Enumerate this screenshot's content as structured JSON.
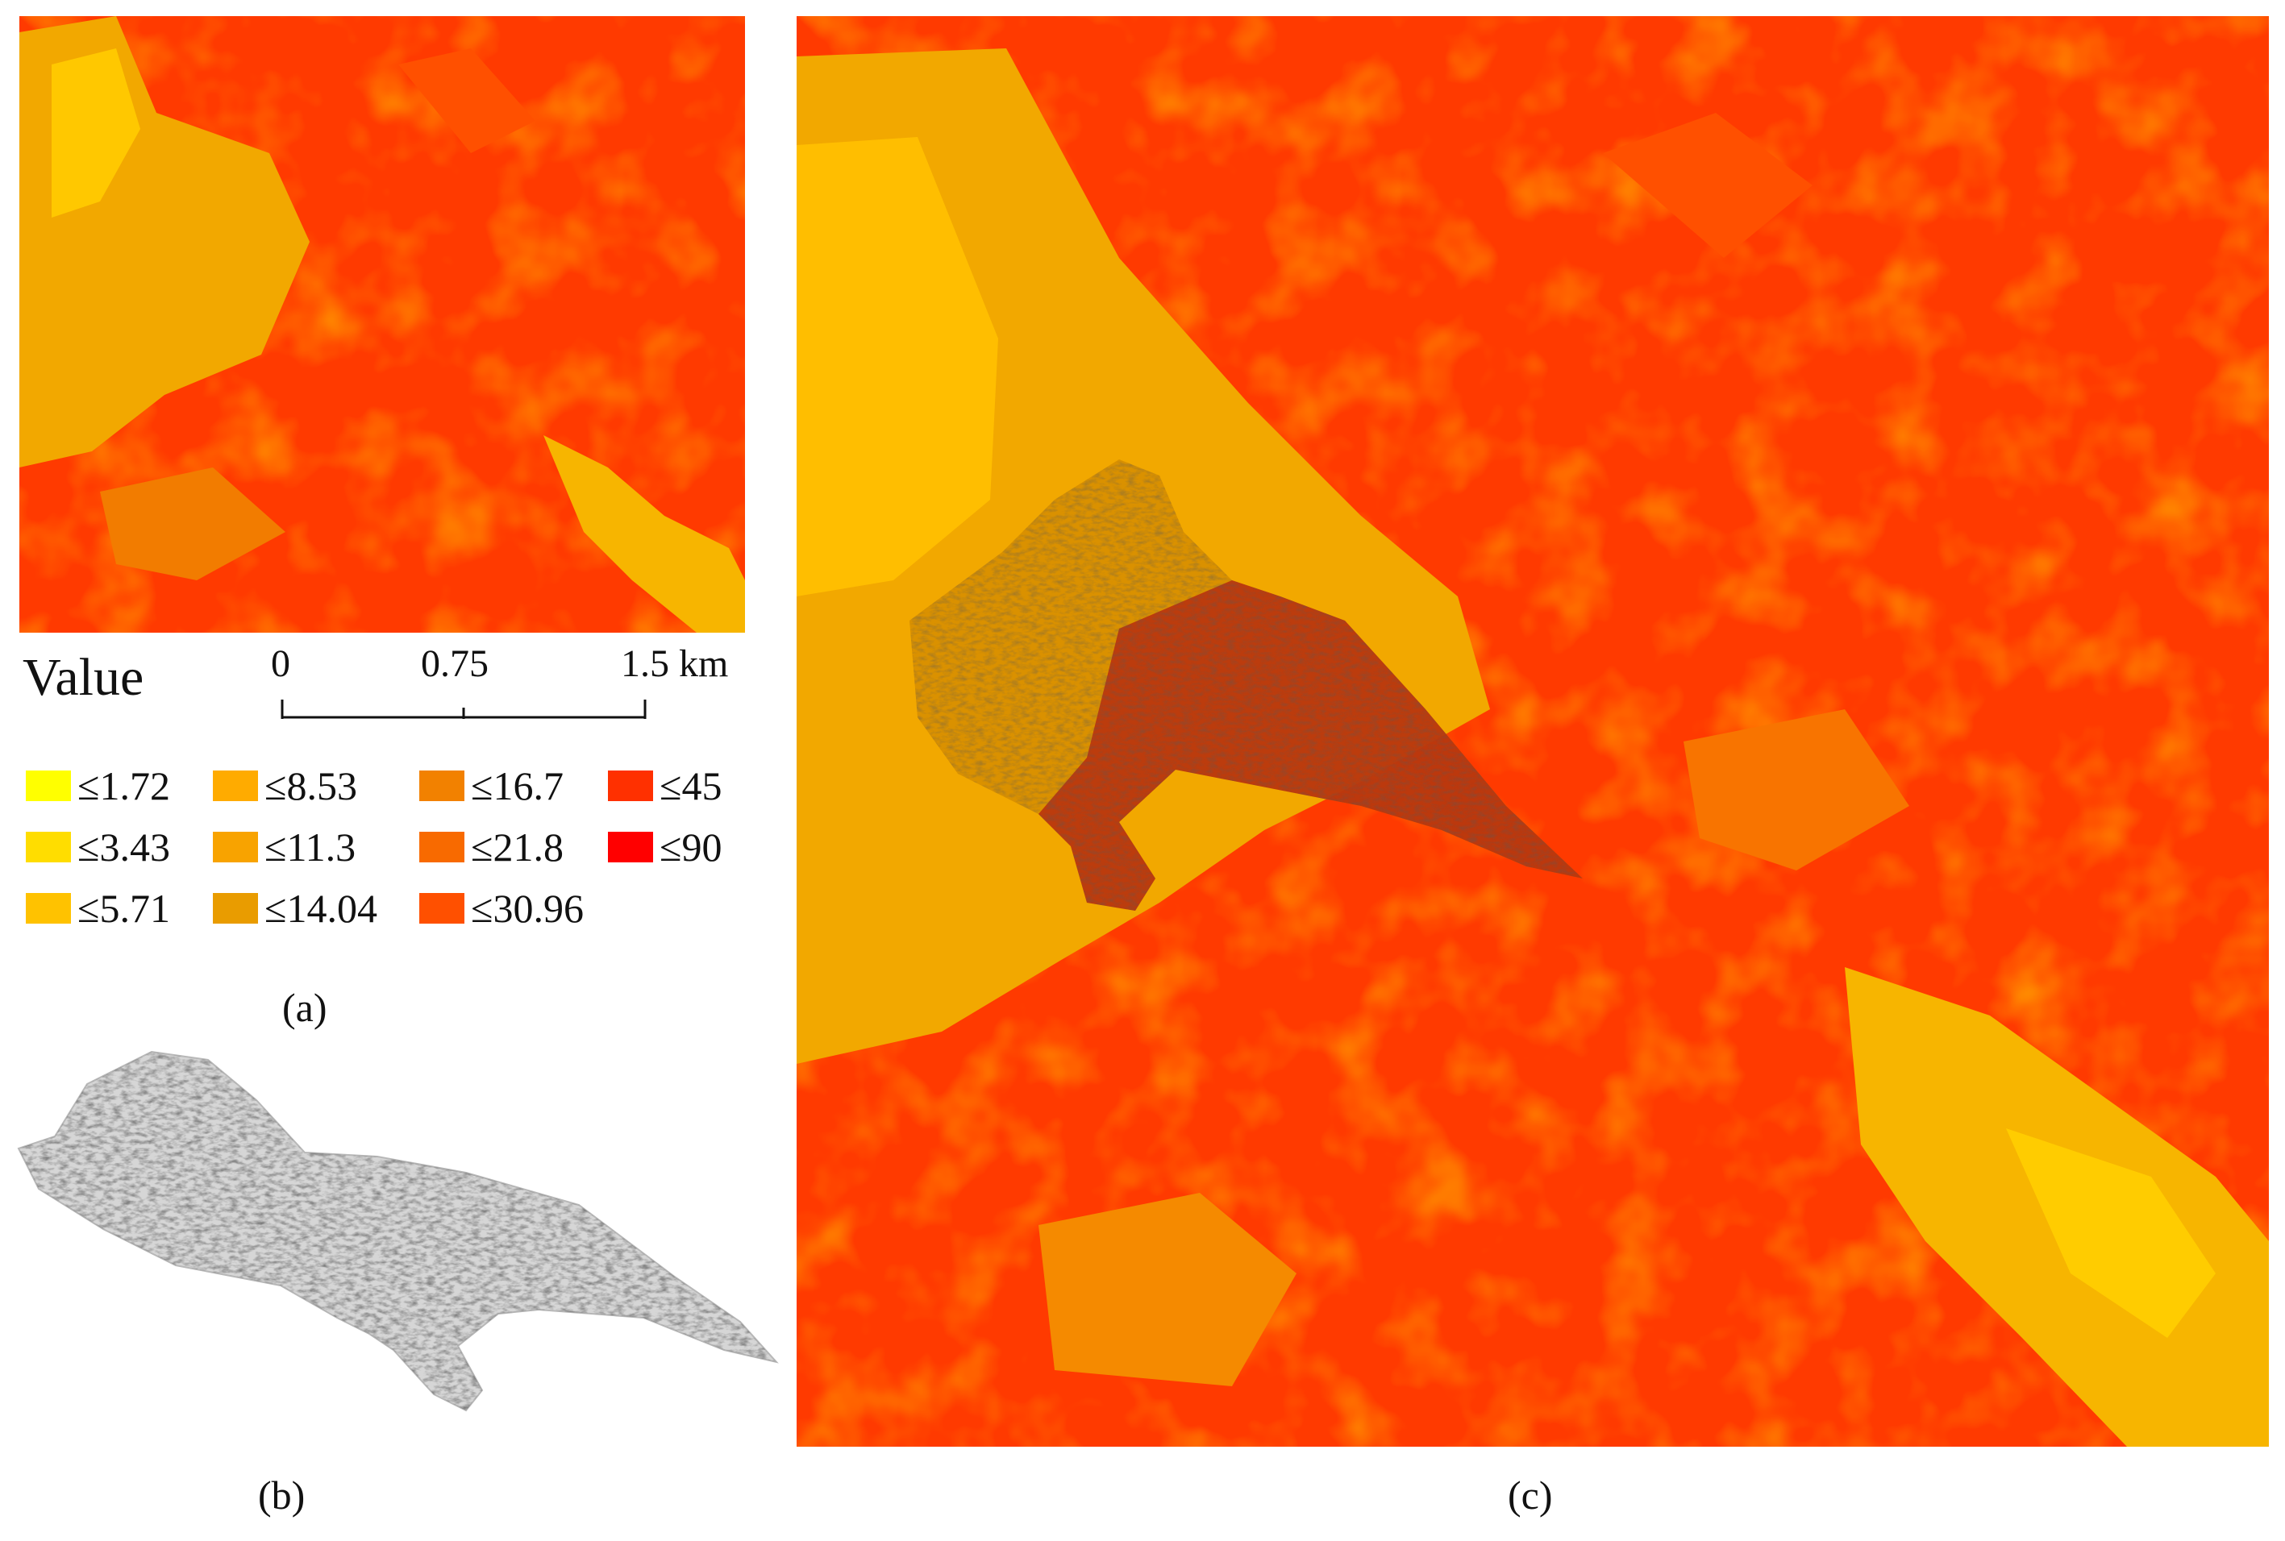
{
  "legend": {
    "title": "Value",
    "classes": [
      {
        "label": "≤1.72",
        "color": "#FFFF00"
      },
      {
        "label": "≤3.43",
        "color": "#FFDD00"
      },
      {
        "label": "≤5.71",
        "color": "#FFC200"
      },
      {
        "label": "≤8.53",
        "color": "#FFAB00"
      },
      {
        "label": "≤11.3",
        "color": "#F8A300"
      },
      {
        "label": "≤14.04",
        "color": "#E99C00"
      },
      {
        "label": "≤16.7",
        "color": "#F28100"
      },
      {
        "label": "≤21.8",
        "color": "#F86A00"
      },
      {
        "label": "≤30.96",
        "color": "#FF5000"
      },
      {
        "label": "≤45",
        "color": "#FF3000"
      },
      {
        "label": "≤90",
        "color": "#FF0000"
      }
    ]
  },
  "scale_bar": {
    "ticks": [
      "0",
      "0.75",
      "1.5 km"
    ]
  },
  "captions": {
    "a": "(a)",
    "b": "(b)",
    "c": "(c)"
  }
}
